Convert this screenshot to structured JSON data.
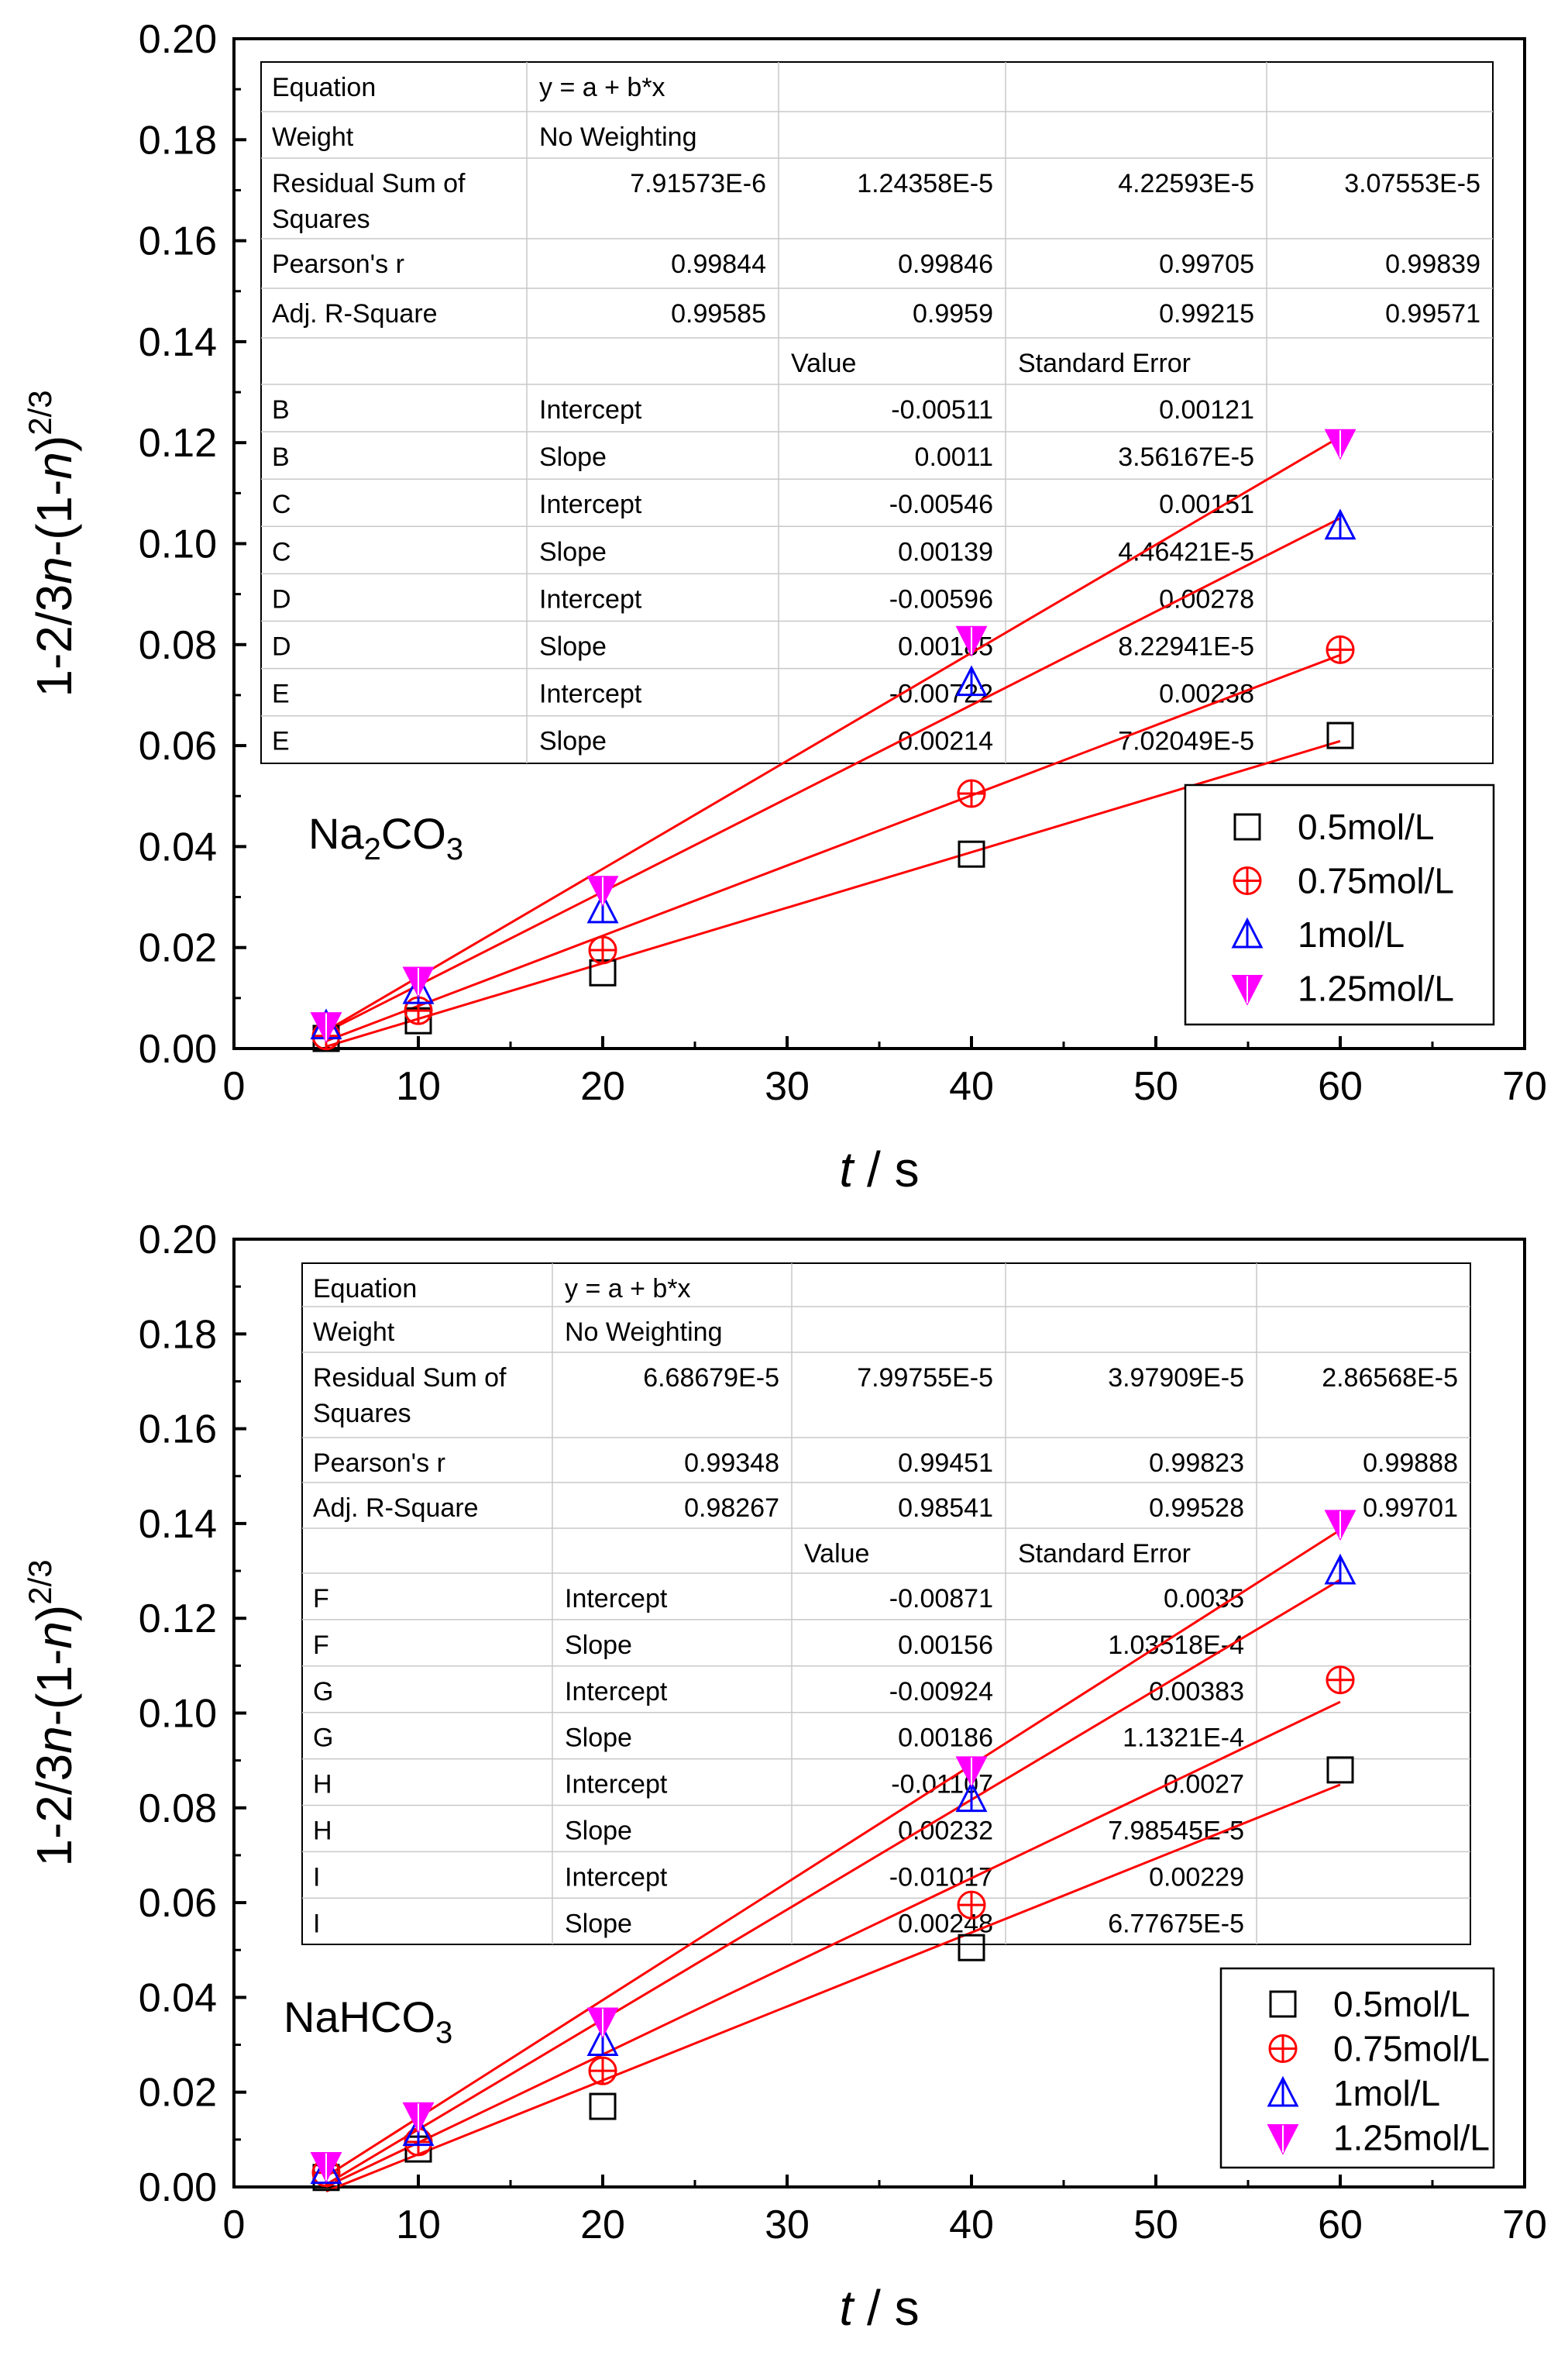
{
  "chart_data": [
    {
      "type": "scatter",
      "xlabel_var": "t",
      "xlabel_unit": "s",
      "ylabel": {
        "a": "1-2/3",
        "b": "n",
        "c": "-(1-",
        "d": "n",
        "e": ")",
        "sup": "2/3"
      },
      "xlim": [
        0,
        70
      ],
      "ylim": [
        0,
        0.2
      ],
      "xticks": [
        "0",
        "10",
        "20",
        "30",
        "40",
        "50",
        "60",
        "70"
      ],
      "yticks": [
        "0.00",
        "0.02",
        "0.04",
        "0.06",
        "0.08",
        "0.10",
        "0.12",
        "0.14",
        "0.16",
        "0.18",
        "0.20"
      ],
      "annotation": {
        "base": "Na",
        "sub1": "2",
        "mid": "CO",
        "sub2": "3"
      },
      "x": [
        5,
        10,
        20,
        40,
        60
      ],
      "series": [
        {
          "name": "0.5mol/L",
          "marker": "square",
          "color": "#000000",
          "values": [
            0.002,
            0.0055,
            0.015,
            0.0385,
            0.062
          ],
          "fit": {
            "a": -0.00511,
            "b": 0.0011
          }
        },
        {
          "name": "0.75mol/L",
          "marker": "circle-plus",
          "color": "#ff0000",
          "values": [
            0.0025,
            0.0075,
            0.0195,
            0.0505,
            0.079
          ],
          "fit": {
            "a": -0.00546,
            "b": 0.00139
          }
        },
        {
          "name": "1mol/L",
          "marker": "triangle-up",
          "color": "#0000ff",
          "values": [
            0.0045,
            0.0115,
            0.0275,
            0.0725,
            0.1035
          ],
          "fit": {
            "a": -0.00596,
            "b": 0.00185
          }
        },
        {
          "name": "1.25mol/L",
          "marker": "triangle-down",
          "color": "#ff00ff",
          "values": [
            0.0045,
            0.0135,
            0.0315,
            0.081,
            0.12
          ],
          "fit": {
            "a": -0.00722,
            "b": 0.00214
          }
        }
      ],
      "table": {
        "top": [
          [
            "Equation",
            "y = a + b*x",
            "",
            "",
            ""
          ],
          [
            "Weight",
            "No Weighting",
            "",
            "",
            ""
          ],
          [
            "Residual Sum of|Squares",
            "7.91573E-6",
            "1.24358E-5",
            "4.22593E-5",
            "3.07553E-5"
          ],
          [
            "Pearson's r",
            "0.99844",
            "0.99846",
            "0.99705",
            "0.99839"
          ],
          [
            "Adj. R-Square",
            "0.99585",
            "0.9959",
            "0.99215",
            "0.99571"
          ],
          [
            "",
            "",
            "Value",
            "Standard Error",
            ""
          ]
        ],
        "params": [
          [
            "B",
            "Intercept",
            "-0.00511",
            "0.00121"
          ],
          [
            "B",
            "Slope",
            "0.0011",
            "3.56167E-5"
          ],
          [
            "C",
            "Intercept",
            "-0.00546",
            "0.00151"
          ],
          [
            "C",
            "Slope",
            "0.00139",
            "4.46421E-5"
          ],
          [
            "D",
            "Intercept",
            "-0.00596",
            "0.00278"
          ],
          [
            "D",
            "Slope",
            "0.00185",
            "8.22941E-5"
          ],
          [
            "E",
            "Intercept",
            "-0.00722",
            "0.00238"
          ],
          [
            "E",
            "Slope",
            "0.00214",
            "7.02049E-5"
          ]
        ]
      }
    },
    {
      "type": "scatter",
      "xlabel_var": "t",
      "xlabel_unit": "s",
      "ylabel": {
        "a": "1-2/3",
        "b": "n",
        "c": "-(1-",
        "d": "n",
        "e": ")",
        "sup": "2/3"
      },
      "xlim": [
        0,
        70
      ],
      "ylim": [
        0,
        0.2
      ],
      "xticks": [
        "0",
        "10",
        "20",
        "30",
        "40",
        "50",
        "60",
        "70"
      ],
      "yticks": [
        "0.00",
        "0.02",
        "0.04",
        "0.06",
        "0.08",
        "0.10",
        "0.12",
        "0.14",
        "0.16",
        "0.18",
        "0.20"
      ],
      "annotation": {
        "base": "NaHCO",
        "sub1": "",
        "mid": "",
        "sub2": "3"
      },
      "x": [
        5,
        10,
        20,
        40,
        60
      ],
      "series": [
        {
          "name": "0.5mol/L",
          "marker": "square",
          "color": "#000000",
          "values": [
            0.002,
            0.008,
            0.017,
            0.0505,
            0.088
          ],
          "fit": {
            "a": -0.00871,
            "b": 0.00156
          }
        },
        {
          "name": "0.75mol/L",
          "marker": "circle-plus",
          "color": "#ff0000",
          "values": [
            0.003,
            0.0095,
            0.0245,
            0.0595,
            0.107
          ],
          "fit": {
            "a": -0.00924,
            "b": 0.00186
          }
        },
        {
          "name": "1mol/L",
          "marker": "triangle-up",
          "color": "#0000ff",
          "values": [
            0.0035,
            0.0115,
            0.0305,
            0.082,
            0.13
          ],
          "fit": {
            "a": -0.01107,
            "b": 0.00232
          }
        },
        {
          "name": "1.25mol/L",
          "marker": "triangle-down",
          "color": "#ff00ff",
          "values": [
            0.0045,
            0.015,
            0.035,
            0.088,
            0.14
          ],
          "fit": {
            "a": -0.01017,
            "b": 0.00248
          }
        }
      ],
      "table": {
        "top": [
          [
            "Equation",
            "y = a + b*x",
            "",
            "",
            ""
          ],
          [
            "Weight",
            "No Weighting",
            "",
            "",
            ""
          ],
          [
            "Residual Sum of|Squares",
            "6.68679E-5",
            "7.99755E-5",
            "3.97909E-5",
            "2.86568E-5"
          ],
          [
            "Pearson's r",
            "0.99348",
            "0.99451",
            "0.99823",
            "0.99888"
          ],
          [
            "Adj. R-Square",
            "0.98267",
            "0.98541",
            "0.99528",
            "0.99701"
          ],
          [
            "",
            "",
            "Value",
            "Standard Error",
            ""
          ]
        ],
        "params": [
          [
            "F",
            "Intercept",
            "-0.00871",
            "0.0035"
          ],
          [
            "F",
            "Slope",
            "0.00156",
            "1.03518E-4"
          ],
          [
            "G",
            "Intercept",
            "-0.00924",
            "0.00383"
          ],
          [
            "G",
            "Slope",
            "0.00186",
            "1.1321E-4"
          ],
          [
            "H",
            "Intercept",
            "-0.01107",
            "0.0027"
          ],
          [
            "H",
            "Slope",
            "0.00232",
            "7.98545E-5"
          ],
          [
            "I",
            "Intercept",
            "-0.01017",
            "0.00229"
          ],
          [
            "I",
            "Slope",
            "0.00248",
            "6.77675E-5"
          ]
        ]
      }
    }
  ]
}
